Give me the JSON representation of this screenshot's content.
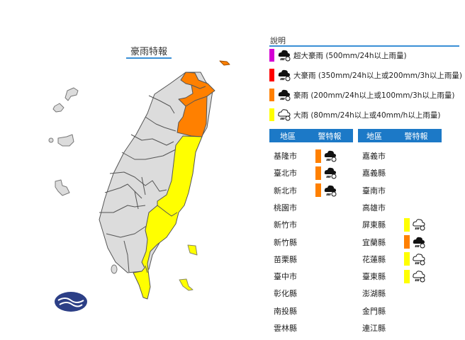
{
  "map": {
    "title": "豪雨特報",
    "colors": {
      "none": "#dcdcdc",
      "heavy_rain": "#ffff00",
      "extremely_heavy": "#ff8000",
      "torrential": "#ff0000",
      "extremely_torrential": "#e000e0"
    },
    "logo": "cwa-logo"
  },
  "legend": {
    "title": "說明",
    "items": [
      {
        "color": "#d400d4",
        "icon": "dark-cloud-rain-icon",
        "label": "超大豪雨 (500mm/24h以上雨量)"
      },
      {
        "color": "#ff0000",
        "icon": "dark-cloud-rain-icon",
        "label": "大豪雨 (350mm/24h以上或200mm/3h以上雨量)"
      },
      {
        "color": "#ff8000",
        "icon": "dark-cloud-rain-icon",
        "label": "豪雨 (200mm/24h以上或100mm/3h以上雨量)"
      },
      {
        "color": "#ffff00",
        "icon": "outline-cloud-rain-icon",
        "label": "大雨 (80mm/24h以上或40mm/h以上雨量)"
      }
    ]
  },
  "table": {
    "headers": {
      "region": "地區",
      "warning": "警特報"
    },
    "left": [
      {
        "name": "基隆市",
        "level": "豪雨",
        "color": "#ff8000"
      },
      {
        "name": "臺北市",
        "level": "豪雨",
        "color": "#ff8000"
      },
      {
        "name": "新北市",
        "level": "豪雨",
        "color": "#ff8000"
      },
      {
        "name": "桃園市"
      },
      {
        "name": "新竹市"
      },
      {
        "name": "新竹縣"
      },
      {
        "name": "苗栗縣"
      },
      {
        "name": "臺中市"
      },
      {
        "name": "彰化縣"
      },
      {
        "name": "南投縣"
      },
      {
        "name": "雲林縣"
      }
    ],
    "right": [
      {
        "name": "嘉義市"
      },
      {
        "name": "嘉義縣"
      },
      {
        "name": "臺南市"
      },
      {
        "name": "高雄市"
      },
      {
        "name": "屏東縣",
        "level": "大雨",
        "color": "#ffff00"
      },
      {
        "name": "宜蘭縣",
        "level": "豪雨",
        "color": "#ff8000"
      },
      {
        "name": "花蓮縣",
        "level": "大雨",
        "color": "#ffff00"
      },
      {
        "name": "臺東縣",
        "level": "大雨",
        "color": "#ffff00"
      },
      {
        "name": "澎湖縣"
      },
      {
        "name": "金門縣"
      },
      {
        "name": "連江縣"
      }
    ]
  }
}
